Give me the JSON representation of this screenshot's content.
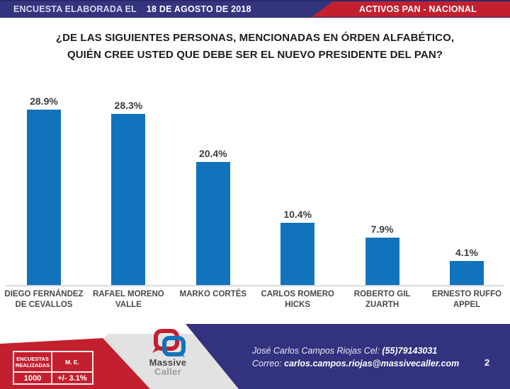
{
  "header": {
    "left_label": "ENCUESTA ELABORADA EL",
    "date": "18 DE AGOSTO DE 2018",
    "right_label": "ACTIVOS PAN - NACIONAL"
  },
  "title": "¿DE LAS SIGUIENTES PERSONAS, MENCIONADAS EN ÓRDEN ALFABÉTICO,\nQUIÉN CREE USTED QUE DEBE SER EL NUEVO PRESIDENTE DEL PAN?",
  "chart_data": {
    "type": "bar",
    "title": "¿DE LAS SIGUIENTES PERSONAS, MENCIONADAS EN ÓRDEN ALFABÉTICO, QUIÉN CREE USTED QUE DEBE SER EL NUEVO PRESIDENTE DEL PAN?",
    "categories": [
      "DIEGO FERNÁNDEZ\nDE CEVALLOS",
      "RAFAEL MORENO\nVALLE",
      "MARKO CORTÉS",
      "CARLOS ROMERO\nHICKS",
      "ROBERTO GIL\nZUARTH",
      "ERNESTO RUFFO\nAPPEL"
    ],
    "values": [
      28.9,
      28.3,
      20.4,
      10.4,
      7.9,
      4.1
    ],
    "value_labels": [
      "28.9%",
      "28.3%",
      "20.4%",
      "10.4%",
      "7.9%",
      "4.1%"
    ],
    "bar_color": "#1173BC",
    "xlabel": "",
    "ylabel": "",
    "ylim": [
      0,
      33
    ],
    "grid": false,
    "legend": "none"
  },
  "footer": {
    "stats": {
      "header1": "ENCUESTAS\nREALIZADAS",
      "header2": "M. E.",
      "value1": "1000",
      "value2": "+/- 3.1%"
    },
    "logo": {
      "word1": "Massive",
      "word2": "Caller"
    },
    "contact": {
      "line1_label": "José Carlos Campos Riojas Cel: ",
      "line1_value": "(55)79143031",
      "line2_label": "Correo: ",
      "line2_value": "carlos.campos.riojas@massivecaller.com"
    },
    "page_number": "2"
  },
  "colors": {
    "navy": "#32327E",
    "red": "#C3202F",
    "bar_blue": "#1173BC"
  }
}
